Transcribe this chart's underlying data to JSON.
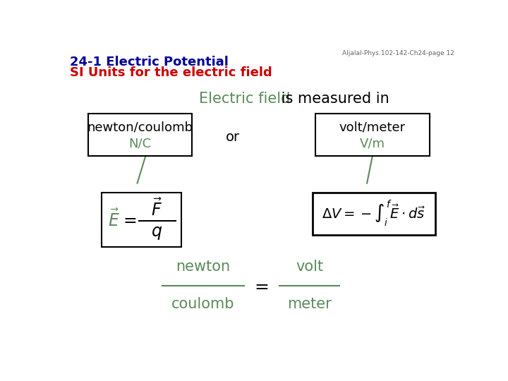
{
  "background_color": "#ffffff",
  "header_line1": "24-1 Electric Potential",
  "header_line2": "SI Units for the electric field",
  "header_color": "#000099",
  "header_line2_color": "#cc0000",
  "watermark": "Aljalal-Phys.102-142-Ch24-page 12",
  "title_text_green": "Electric field",
  "title_text_black": " is measured in",
  "box1_line1": "newton/coulomb",
  "box1_line2": "N/C",
  "box2_line1": "volt/meter",
  "box2_line2": "V/m",
  "or_text": "or",
  "green_color": "#5a8a5a",
  "black_color": "#000000",
  "dark_navy": "#000099",
  "red_color": "#cc0000"
}
